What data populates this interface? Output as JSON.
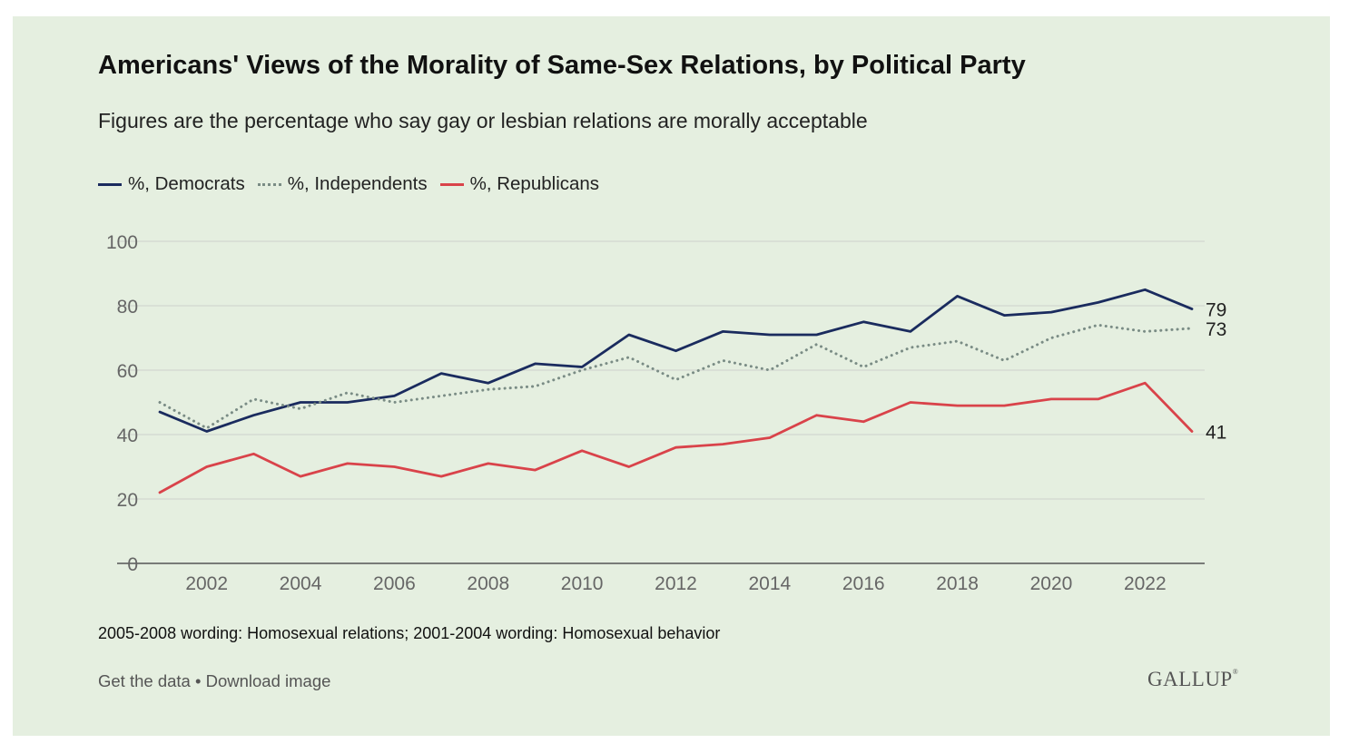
{
  "chart_data": {
    "type": "line",
    "title": "Americans' Views of the Morality of Same-Sex Relations, by Political Party",
    "subtitle": "Figures are the percentage who say gay or lesbian relations are morally acceptable",
    "xlabel": "",
    "ylabel": "",
    "ylim": [
      0,
      100
    ],
    "xlim": [
      2001,
      2023
    ],
    "grid": true,
    "legend_position": "top-left",
    "yticks": [
      0,
      20,
      40,
      60,
      80,
      100
    ],
    "xticks": [
      2002,
      2004,
      2006,
      2008,
      2010,
      2012,
      2014,
      2016,
      2018,
      2020,
      2022
    ],
    "x": [
      2001,
      2002,
      2003,
      2004,
      2005,
      2006,
      2007,
      2008,
      2009,
      2010,
      2011,
      2012,
      2013,
      2014,
      2015,
      2016,
      2017,
      2018,
      2019,
      2020,
      2021,
      2022,
      2023
    ],
    "series": [
      {
        "name": "%, Democrats",
        "color": "#1a2b5e",
        "style": "solid",
        "values": [
          47,
          41,
          46,
          50,
          50,
          52,
          59,
          56,
          62,
          61,
          71,
          66,
          72,
          71,
          71,
          75,
          72,
          83,
          77,
          78,
          81,
          85,
          79
        ],
        "end_label": "79"
      },
      {
        "name": "%, Independents",
        "color": "#7a8c85",
        "style": "dotted",
        "values": [
          50,
          42,
          51,
          48,
          53,
          50,
          52,
          54,
          55,
          60,
          64,
          57,
          63,
          60,
          68,
          61,
          67,
          69,
          63,
          70,
          74,
          72,
          73
        ],
        "end_label": "73"
      },
      {
        "name": "%, Republicans",
        "color": "#d9434a",
        "style": "solid",
        "values": [
          22,
          30,
          34,
          27,
          31,
          30,
          27,
          31,
          29,
          35,
          30,
          36,
          37,
          39,
          46,
          44,
          50,
          49,
          49,
          51,
          51,
          56,
          41
        ],
        "end_label": "41"
      }
    ]
  },
  "footer": {
    "note": "2005-2008 wording: Homosexual relations; 2001-2004 wording: Homosexual behavior",
    "get_data": "Get the data",
    "separator": " • ",
    "download": "Download image",
    "logo": "GALLUP"
  },
  "colors": {
    "background": "#e5efe0",
    "grid": "#d2d6cf",
    "axis": "#555555",
    "tick_text": "#666666"
  }
}
